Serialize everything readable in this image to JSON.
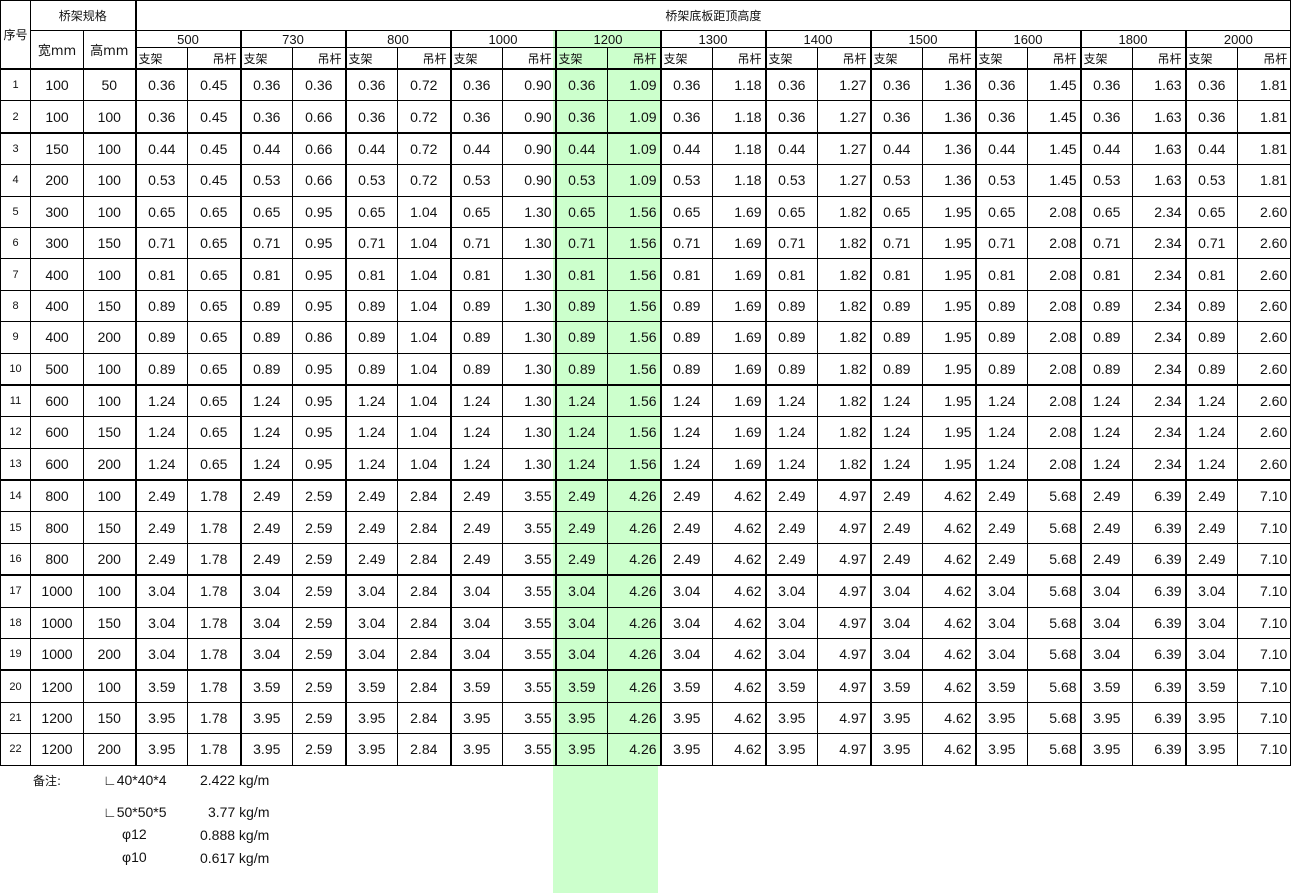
{
  "header": {
    "seq": "序号",
    "spec": "桥架规格",
    "width": "宽mm",
    "height": "高mm",
    "distance": "桥架底板距顶高度",
    "heights": [
      "500",
      "730",
      "800",
      "1000",
      "1200",
      "1300",
      "1400",
      "1500",
      "1600",
      "1800",
      "2000"
    ],
    "bracket": "支架",
    "rod": "吊杆",
    "highlight_color": "#ccffcc",
    "highlight_height": "1200"
  },
  "rows": [
    [
      "1",
      "100",
      "50",
      "0.36",
      "0.45",
      "0.36",
      "0.36",
      "0.36",
      "0.72",
      "0.36",
      "0.90",
      "0.36",
      "1.09",
      "0.36",
      "1.18",
      "0.36",
      "1.27",
      "0.36",
      "1.36",
      "0.36",
      "1.45",
      "0.36",
      "1.63",
      "0.36",
      "1.81"
    ],
    [
      "2",
      "100",
      "100",
      "0.36",
      "0.45",
      "0.36",
      "0.66",
      "0.36",
      "0.72",
      "0.36",
      "0.90",
      "0.36",
      "1.09",
      "0.36",
      "1.18",
      "0.36",
      "1.27",
      "0.36",
      "1.36",
      "0.36",
      "1.45",
      "0.36",
      "1.63",
      "0.36",
      "1.81"
    ],
    [
      "3",
      "150",
      "100",
      "0.44",
      "0.45",
      "0.44",
      "0.66",
      "0.44",
      "0.72",
      "0.44",
      "0.90",
      "0.44",
      "1.09",
      "0.44",
      "1.18",
      "0.44",
      "1.27",
      "0.44",
      "1.36",
      "0.44",
      "1.45",
      "0.44",
      "1.63",
      "0.44",
      "1.81"
    ],
    [
      "4",
      "200",
      "100",
      "0.53",
      "0.45",
      "0.53",
      "0.66",
      "0.53",
      "0.72",
      "0.53",
      "0.90",
      "0.53",
      "1.09",
      "0.53",
      "1.18",
      "0.53",
      "1.27",
      "0.53",
      "1.36",
      "0.53",
      "1.45",
      "0.53",
      "1.63",
      "0.53",
      "1.81"
    ],
    [
      "5",
      "300",
      "100",
      "0.65",
      "0.65",
      "0.65",
      "0.95",
      "0.65",
      "1.04",
      "0.65",
      "1.30",
      "0.65",
      "1.56",
      "0.65",
      "1.69",
      "0.65",
      "1.82",
      "0.65",
      "1.95",
      "0.65",
      "2.08",
      "0.65",
      "2.34",
      "0.65",
      "2.60"
    ],
    [
      "6",
      "300",
      "150",
      "0.71",
      "0.65",
      "0.71",
      "0.95",
      "0.71",
      "1.04",
      "0.71",
      "1.30",
      "0.71",
      "1.56",
      "0.71",
      "1.69",
      "0.71",
      "1.82",
      "0.71",
      "1.95",
      "0.71",
      "2.08",
      "0.71",
      "2.34",
      "0.71",
      "2.60"
    ],
    [
      "7",
      "400",
      "100",
      "0.81",
      "0.65",
      "0.81",
      "0.95",
      "0.81",
      "1.04",
      "0.81",
      "1.30",
      "0.81",
      "1.56",
      "0.81",
      "1.69",
      "0.81",
      "1.82",
      "0.81",
      "1.95",
      "0.81",
      "2.08",
      "0.81",
      "2.34",
      "0.81",
      "2.60"
    ],
    [
      "8",
      "400",
      "150",
      "0.89",
      "0.65",
      "0.89",
      "0.95",
      "0.89",
      "1.04",
      "0.89",
      "1.30",
      "0.89",
      "1.56",
      "0.89",
      "1.69",
      "0.89",
      "1.82",
      "0.89",
      "1.95",
      "0.89",
      "2.08",
      "0.89",
      "2.34",
      "0.89",
      "2.60"
    ],
    [
      "9",
      "400",
      "200",
      "0.89",
      "0.65",
      "0.89",
      "0.86",
      "0.89",
      "1.04",
      "0.89",
      "1.30",
      "0.89",
      "1.56",
      "0.89",
      "1.69",
      "0.89",
      "1.82",
      "0.89",
      "1.95",
      "0.89",
      "2.08",
      "0.89",
      "2.34",
      "0.89",
      "2.60"
    ],
    [
      "10",
      "500",
      "100",
      "0.89",
      "0.65",
      "0.89",
      "0.95",
      "0.89",
      "1.04",
      "0.89",
      "1.30",
      "0.89",
      "1.56",
      "0.89",
      "1.69",
      "0.89",
      "1.82",
      "0.89",
      "1.95",
      "0.89",
      "2.08",
      "0.89",
      "2.34",
      "0.89",
      "2.60"
    ],
    [
      "11",
      "600",
      "100",
      "1.24",
      "0.65",
      "1.24",
      "0.95",
      "1.24",
      "1.04",
      "1.24",
      "1.30",
      "1.24",
      "1.56",
      "1.24",
      "1.69",
      "1.24",
      "1.82",
      "1.24",
      "1.95",
      "1.24",
      "2.08",
      "1.24",
      "2.34",
      "1.24",
      "2.60"
    ],
    [
      "12",
      "600",
      "150",
      "1.24",
      "0.65",
      "1.24",
      "0.95",
      "1.24",
      "1.04",
      "1.24",
      "1.30",
      "1.24",
      "1.56",
      "1.24",
      "1.69",
      "1.24",
      "1.82",
      "1.24",
      "1.95",
      "1.24",
      "2.08",
      "1.24",
      "2.34",
      "1.24",
      "2.60"
    ],
    [
      "13",
      "600",
      "200",
      "1.24",
      "0.65",
      "1.24",
      "0.95",
      "1.24",
      "1.04",
      "1.24",
      "1.30",
      "1.24",
      "1.56",
      "1.24",
      "1.69",
      "1.24",
      "1.82",
      "1.24",
      "1.95",
      "1.24",
      "2.08",
      "1.24",
      "2.34",
      "1.24",
      "2.60"
    ],
    [
      "14",
      "800",
      "100",
      "2.49",
      "1.78",
      "2.49",
      "2.59",
      "2.49",
      "2.84",
      "2.49",
      "3.55",
      "2.49",
      "4.26",
      "2.49",
      "4.62",
      "2.49",
      "4.97",
      "2.49",
      "4.62",
      "2.49",
      "5.68",
      "2.49",
      "6.39",
      "2.49",
      "7.10"
    ],
    [
      "15",
      "800",
      "150",
      "2.49",
      "1.78",
      "2.49",
      "2.59",
      "2.49",
      "2.84",
      "2.49",
      "3.55",
      "2.49",
      "4.26",
      "2.49",
      "4.62",
      "2.49",
      "4.97",
      "2.49",
      "4.62",
      "2.49",
      "5.68",
      "2.49",
      "6.39",
      "2.49",
      "7.10"
    ],
    [
      "16",
      "800",
      "200",
      "2.49",
      "1.78",
      "2.49",
      "2.59",
      "2.49",
      "2.84",
      "2.49",
      "3.55",
      "2.49",
      "4.26",
      "2.49",
      "4.62",
      "2.49",
      "4.97",
      "2.49",
      "4.62",
      "2.49",
      "5.68",
      "2.49",
      "6.39",
      "2.49",
      "7.10"
    ],
    [
      "17",
      "1000",
      "100",
      "3.04",
      "1.78",
      "3.04",
      "2.59",
      "3.04",
      "2.84",
      "3.04",
      "3.55",
      "3.04",
      "4.26",
      "3.04",
      "4.62",
      "3.04",
      "4.97",
      "3.04",
      "4.62",
      "3.04",
      "5.68",
      "3.04",
      "6.39",
      "3.04",
      "7.10"
    ],
    [
      "18",
      "1000",
      "150",
      "3.04",
      "1.78",
      "3.04",
      "2.59",
      "3.04",
      "2.84",
      "3.04",
      "3.55",
      "3.04",
      "4.26",
      "3.04",
      "4.62",
      "3.04",
      "4.97",
      "3.04",
      "4.62",
      "3.04",
      "5.68",
      "3.04",
      "6.39",
      "3.04",
      "7.10"
    ],
    [
      "19",
      "1000",
      "200",
      "3.04",
      "1.78",
      "3.04",
      "2.59",
      "3.04",
      "2.84",
      "3.04",
      "3.55",
      "3.04",
      "4.26",
      "3.04",
      "4.62",
      "3.04",
      "4.97",
      "3.04",
      "4.62",
      "3.04",
      "5.68",
      "3.04",
      "6.39",
      "3.04",
      "7.10"
    ],
    [
      "20",
      "1200",
      "100",
      "3.59",
      "1.78",
      "3.59",
      "2.59",
      "3.59",
      "2.84",
      "3.59",
      "3.55",
      "3.59",
      "4.26",
      "3.59",
      "4.62",
      "3.59",
      "4.97",
      "3.59",
      "4.62",
      "3.59",
      "5.68",
      "3.59",
      "6.39",
      "3.59",
      "7.10"
    ],
    [
      "21",
      "1200",
      "150",
      "3.95",
      "1.78",
      "3.95",
      "2.59",
      "3.95",
      "2.84",
      "3.95",
      "3.55",
      "3.95",
      "4.26",
      "3.95",
      "4.62",
      "3.95",
      "4.97",
      "3.95",
      "4.62",
      "3.95",
      "5.68",
      "3.95",
      "6.39",
      "3.95",
      "7.10"
    ],
    [
      "22",
      "1200",
      "200",
      "3.95",
      "1.78",
      "3.95",
      "2.59",
      "3.95",
      "2.84",
      "3.95",
      "3.55",
      "3.95",
      "4.26",
      "3.95",
      "4.62",
      "3.95",
      "4.97",
      "3.95",
      "4.62",
      "3.95",
      "5.68",
      "3.95",
      "6.39",
      "3.95",
      "7.10"
    ]
  ],
  "notes": {
    "label": "备注:",
    "items": [
      {
        "spec": "∟40*40*4",
        "weight": "2.422 kg/m"
      },
      {
        "spec": "∟50*50*5",
        "weight": "3.77 kg/m"
      },
      {
        "spec": "φ12",
        "weight": "0.888 kg/m"
      },
      {
        "spec": "φ10",
        "weight": "0.617 kg/m"
      }
    ]
  }
}
